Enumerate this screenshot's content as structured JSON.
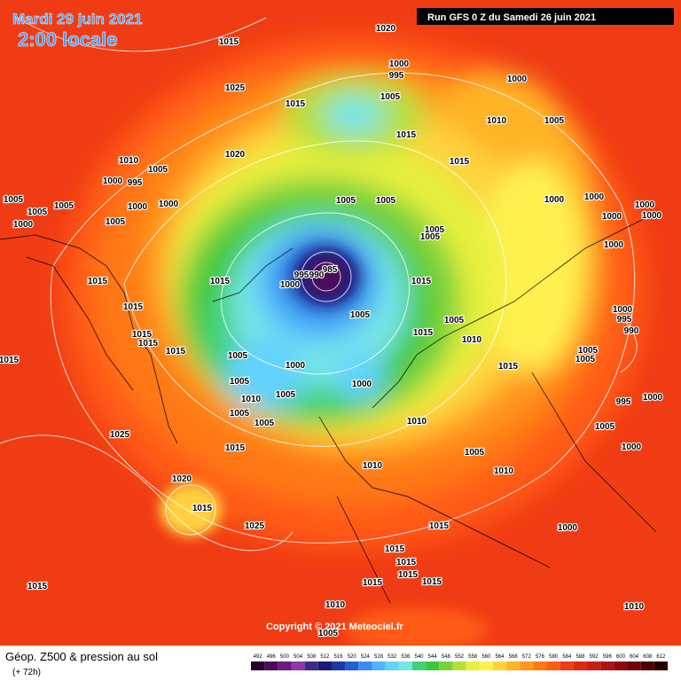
{
  "header": {
    "date": "Mardi 29 juin 2021",
    "time": "2:00 locale",
    "run": "Run GFS 0 Z du Samedi 26 juin 2021"
  },
  "copyright": "Copyright © 2021 Meteociel.fr",
  "footer": {
    "title": "Géop. Z500 & pression au sol",
    "lead": "(+ 72h)"
  },
  "scale": {
    "values": [
      492,
      496,
      500,
      504,
      508,
      512,
      516,
      520,
      524,
      528,
      532,
      536,
      540,
      544,
      548,
      552,
      556,
      560,
      564,
      568,
      572,
      576,
      580,
      584,
      588,
      592,
      596,
      600,
      604,
      608,
      612
    ],
    "colors": [
      "#2a0033",
      "#4b0a5c",
      "#6e1a82",
      "#8c3aa6",
      "#3c2a8c",
      "#1a1a7a",
      "#1a3aa0",
      "#2060d0",
      "#3c8cf0",
      "#50b4ff",
      "#64d2ff",
      "#78e6e6",
      "#40d27a",
      "#3cc83c",
      "#78d23c",
      "#b4e03c",
      "#e6f03c",
      "#fff050",
      "#ffd23c",
      "#ffb428",
      "#ff961e",
      "#ff7814",
      "#ff5a14",
      "#f03c14",
      "#dc2814",
      "#c81e14",
      "#aa1414",
      "#8c0a0a",
      "#6e0505",
      "#500000",
      "#280000"
    ]
  },
  "isobar_labels": [
    "1020",
    "1015",
    "1000",
    "995",
    "1000",
    "1025",
    "1015",
    "1005",
    "1010",
    "1005",
    "1015",
    "1010",
    "1005",
    "1020",
    "1015",
    "995",
    "1000",
    "1005",
    "1005",
    "1005",
    "1000",
    "1000",
    "1000",
    "1005",
    "1005",
    "1005",
    "1000",
    "1000",
    "1000",
    "1000",
    "1000",
    "1005",
    "1005",
    "1000",
    "1015",
    "1015",
    "985",
    "995",
    "990",
    "1000",
    "1015",
    "1015",
    "1005",
    "1005",
    "1000",
    "995",
    "990",
    "1015",
    "1015",
    "1015",
    "1010",
    "1015",
    "1005",
    "1005",
    "1015",
    "1005",
    "1000",
    "1015",
    "1005",
    "1000",
    "1005",
    "1010",
    "995",
    "1000",
    "1005",
    "1010",
    "1005",
    "1005",
    "1025",
    "1000",
    "1015",
    "1005",
    "1010",
    "1010",
    "1020",
    "1015",
    "1025",
    "1015",
    "1000",
    "1015",
    "1015",
    "1015",
    "1015",
    "1015",
    "1015",
    "1010",
    "1010",
    "1005"
  ]
}
